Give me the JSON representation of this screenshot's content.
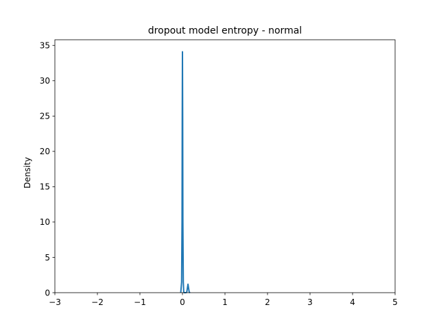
{
  "chart_data": {
    "type": "line",
    "title": "dropout model entropy - normal",
    "xlabel": "",
    "ylabel": "Density",
    "xlim": [
      -3,
      5
    ],
    "ylim": [
      0,
      35.8
    ],
    "x_ticks": [
      -3,
      -2,
      -1,
      0,
      1,
      2,
      3,
      4,
      5
    ],
    "y_ticks": [
      0,
      5,
      10,
      15,
      20,
      25,
      30,
      35
    ],
    "grid": false,
    "line_color": "#1f77b4",
    "series": [
      {
        "x": [
          -0.04,
          -0.02,
          -0.01,
          -0.005,
          0.0,
          0.005,
          0.01,
          0.02,
          0.03,
          0.04,
          0.06,
          0.08,
          0.1,
          0.115,
          0.13,
          0.145,
          0.16,
          0.18
        ],
        "y": [
          0.0,
          1.5,
          10.0,
          25.0,
          34.1,
          25.0,
          10.0,
          1.5,
          0.1,
          0.0,
          0.0,
          0.0,
          0.05,
          0.6,
          1.2,
          0.6,
          0.05,
          0.0
        ]
      }
    ]
  }
}
